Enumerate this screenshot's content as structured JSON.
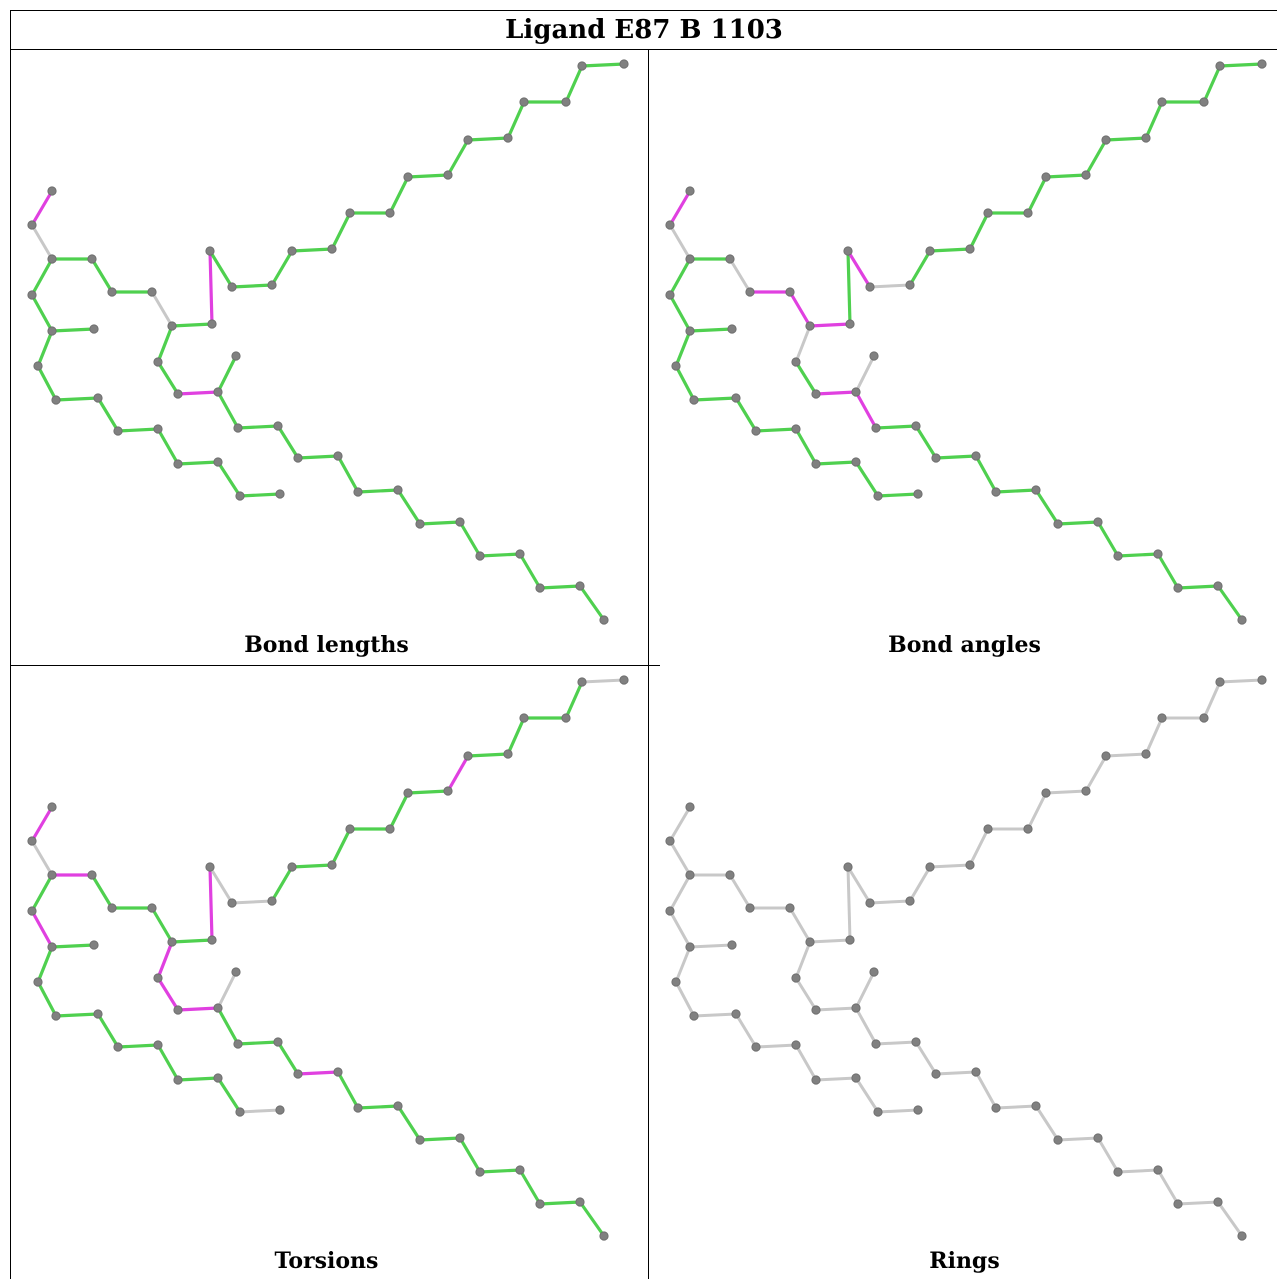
{
  "title": "Ligand E87 B 1103",
  "panels": [
    {
      "key": "bonds",
      "caption": "Bond lengths"
    },
    {
      "key": "angles",
      "caption": "Bond angles"
    },
    {
      "key": "torsions",
      "caption": "Torsions"
    },
    {
      "key": "rings",
      "caption": "Rings"
    }
  ],
  "colors": {
    "ok": "#4fd04f",
    "outlier": "#e040e0",
    "none": "#c8c8c8",
    "atom": "#808080"
  }
}
